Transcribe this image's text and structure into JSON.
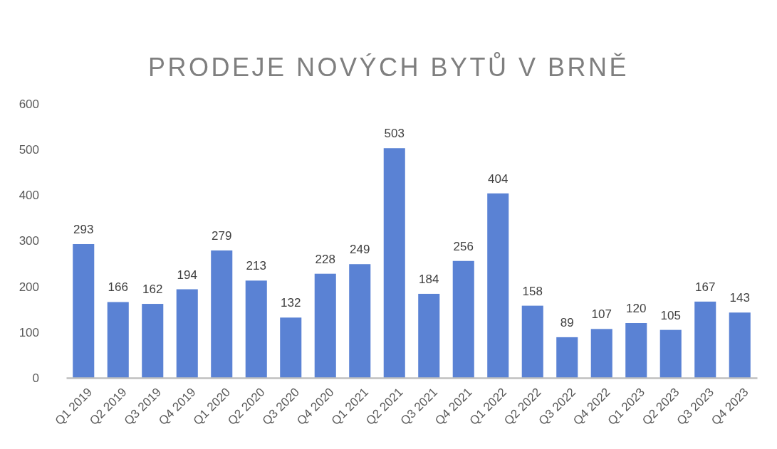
{
  "chart_data": {
    "type": "bar",
    "title": "PRODEJE NOVÝCH BYTŮ V BRNĚ",
    "categories": [
      "Q1 2019",
      "Q2 2019",
      "Q3 2019",
      "Q4 2019",
      "Q1 2020",
      "Q2 2020",
      "Q3 2020",
      "Q4 2020",
      "Q1 2021",
      "Q2 2021",
      "Q3 2021",
      "Q4 2021",
      "Q1 2022",
      "Q2 2022",
      "Q3 2022",
      "Q4 2022",
      "Q1 2023",
      "Q2 2023",
      "Q3 2023",
      "Q4 2023"
    ],
    "values": [
      293,
      166,
      162,
      194,
      279,
      213,
      132,
      228,
      249,
      503,
      184,
      256,
      404,
      158,
      89,
      107,
      120,
      105,
      167,
      143
    ],
    "color": "#5a82d4",
    "ylim": [
      0,
      600
    ],
    "yticks": [
      0,
      100,
      200,
      300,
      400,
      500,
      600
    ],
    "grid": false,
    "data_labels": true
  }
}
